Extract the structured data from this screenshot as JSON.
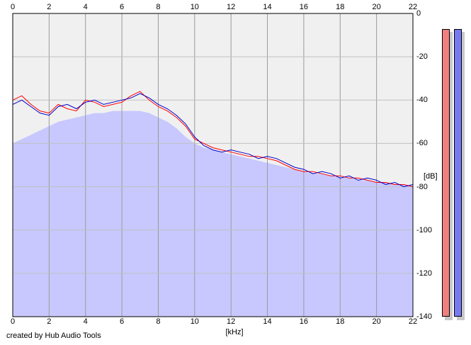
{
  "analyzer": {
    "credit": "created by Hub Audio Tools",
    "x_unit": "[kHz]",
    "y_unit": "[dB]"
  },
  "meters": {
    "left_color": "#f08080",
    "right_color": "#7a7af0"
  },
  "chart_data": {
    "type": "line",
    "xlabel": "[kHz]",
    "ylabel": "[dB]",
    "xlim": [
      0,
      22
    ],
    "ylim": [
      -140,
      0
    ],
    "x_ticks": [
      "0",
      "2",
      "4",
      "6",
      "8",
      "10",
      "12",
      "14",
      "16",
      "18",
      "20",
      "22"
    ],
    "y_ticks": [
      "0",
      "-20",
      "-40",
      "-60",
      "-80",
      "-100",
      "-120",
      "-140"
    ],
    "grid": true,
    "x": [
      0,
      0.5,
      1,
      1.5,
      2,
      2.5,
      3,
      3.5,
      4,
      4.5,
      5,
      5.5,
      6,
      6.5,
      7,
      7.5,
      8,
      8.5,
      9,
      9.5,
      10,
      10.5,
      11,
      11.5,
      12,
      12.5,
      13,
      13.5,
      14,
      14.5,
      15,
      15.5,
      16,
      16.5,
      17,
      17.5,
      18,
      18.5,
      19,
      19.5,
      20,
      20.5,
      21,
      21.5,
      22
    ],
    "series": [
      {
        "color": "#ff0000",
        "values": [
          -40,
          -38,
          -42,
          -45,
          -46,
          -42,
          -44,
          -45,
          -40,
          -41,
          -43,
          -42,
          -41,
          -38,
          -36,
          -40,
          -43,
          -45,
          -48,
          -52,
          -58,
          -60,
          -62,
          -63,
          -64,
          -65,
          -66,
          -66,
          -67,
          -68,
          -70,
          -72,
          -73,
          -73,
          -74,
          -75,
          -75,
          -76,
          -76,
          -77,
          -78,
          -78,
          -79,
          -79,
          -80
        ]
      },
      {
        "color": "#0000cc",
        "values": [
          -42,
          -40,
          -43,
          -46,
          -47,
          -43,
          -42,
          -44,
          -41,
          -40,
          -42,
          -41,
          -40,
          -39,
          -37,
          -39,
          -42,
          -44,
          -47,
          -51,
          -57,
          -61,
          -63,
          -64,
          -63,
          -64,
          -65,
          -67,
          -66,
          -67,
          -69,
          -71,
          -72,
          -74,
          -73,
          -74,
          -76,
          -75,
          -77,
          -76,
          -77,
          -79,
          -78,
          -80,
          -79
        ]
      }
    ],
    "fill": {
      "color": "#c8c8ff",
      "values": [
        -60,
        -58,
        -56,
        -54,
        -52,
        -50,
        -49,
        -48,
        -47,
        -46,
        -46,
        -45,
        -45,
        -45,
        -45,
        -46,
        -48,
        -50,
        -53,
        -57,
        -60,
        -62,
        -63,
        -64,
        -65,
        -66,
        -67,
        -68,
        -69,
        -70,
        -71,
        -72,
        -73,
        -74,
        -74,
        -75,
        -76,
        -76,
        -77,
        -77,
        -78,
        -78,
        -79,
        -79,
        -80
      ]
    }
  }
}
